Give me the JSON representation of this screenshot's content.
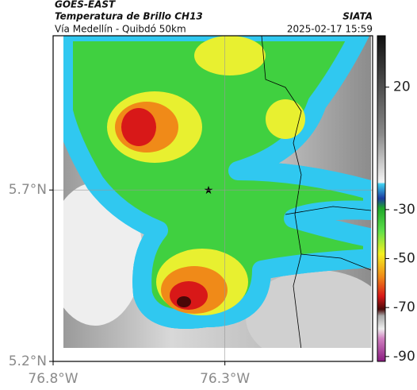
{
  "header": {
    "satellite": "GOES-EAST",
    "product": "Temperatura de Brillo CH13",
    "route": "Vía Medellín - Quibdó 50km",
    "source": "SIATA",
    "datetime": "2025-02-17 15:59"
  },
  "map": {
    "xlim": [
      -76.8,
      -75.87
    ],
    "ylim": [
      5.2,
      6.15
    ],
    "xticks": [
      {
        "value": -76.8,
        "label": "76.8°W"
      },
      {
        "value": -76.3,
        "label": "76.3°W"
      }
    ],
    "yticks": [
      {
        "value": 5.2,
        "label": "5.2°N"
      },
      {
        "value": 5.7,
        "label": "5.7°N"
      }
    ]
  },
  "colorbar": {
    "clim": [
      -92,
      41
    ],
    "ticks": [
      20,
      -30,
      -50,
      -70,
      -90
    ]
  }
}
